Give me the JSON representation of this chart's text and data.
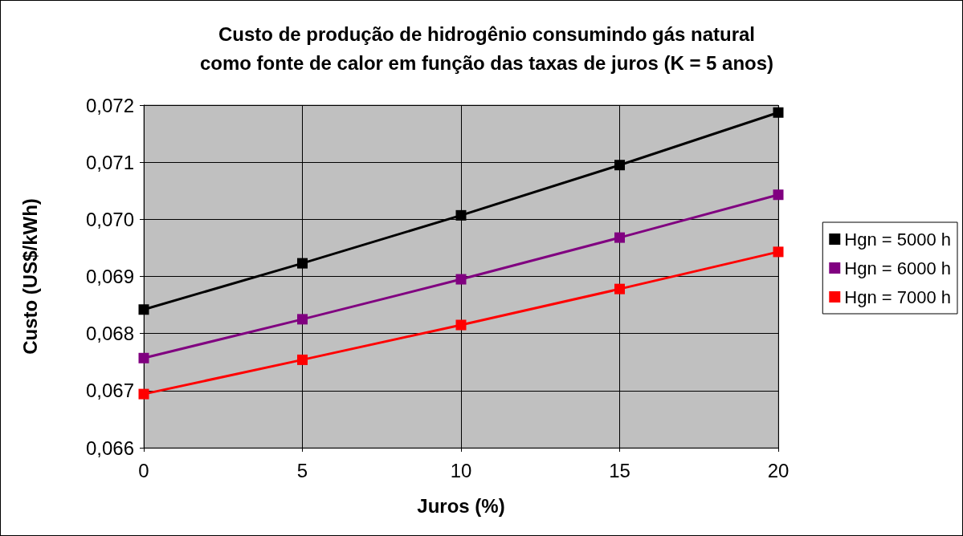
{
  "chart_data": {
    "type": "line",
    "title": "Custo de produção de hidrogênio consumindo gás natural\ncomo fonte de calor em função das taxas de juros (K = 5 anos)",
    "xlabel": "Juros (%)",
    "ylabel": "Custo (US$/kWh)",
    "x": [
      0,
      5,
      10,
      15,
      20
    ],
    "series": [
      {
        "name": "Hgn = 5000 h",
        "color": "#000000",
        "values": [
          0.06842,
          0.06923,
          0.07007,
          0.07095,
          0.07187
        ]
      },
      {
        "name": "Hgn = 6000 h",
        "color": "#800080",
        "values": [
          0.06757,
          0.06825,
          0.06895,
          0.06968,
          0.07043
        ]
      },
      {
        "name": "Hgn = 7000 h",
        "color": "#ff0000",
        "values": [
          0.06694,
          0.06754,
          0.06815,
          0.06878,
          0.06943
        ]
      }
    ],
    "xlim": [
      0,
      20
    ],
    "xticks": [
      0,
      5,
      10,
      15,
      20
    ],
    "ylim": [
      0.066,
      0.072
    ],
    "yticks": [
      {
        "value": 0.066,
        "label": "0,066"
      },
      {
        "value": 0.067,
        "label": "0,067"
      },
      {
        "value": 0.068,
        "label": "0,068"
      },
      {
        "value": 0.069,
        "label": "0,069"
      },
      {
        "value": 0.07,
        "label": "0,070"
      },
      {
        "value": 0.071,
        "label": "0,071"
      },
      {
        "value": 0.072,
        "label": "0,072"
      }
    ],
    "grid": true,
    "legend": "right",
    "marker": "square",
    "line_style": "solid"
  }
}
